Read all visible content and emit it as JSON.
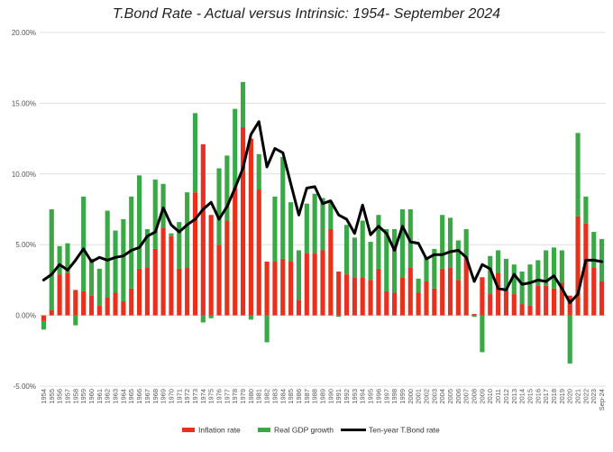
{
  "chart_data": {
    "type": "bar",
    "title": "T.Bond Rate - Actual versus Intrinsic: 1954- September 2024",
    "xlabel": "",
    "ylabel": "",
    "ylim": [
      -5,
      20
    ],
    "y_ticks": [
      "-5.00%",
      "0.00%",
      "5.00%",
      "10.00%",
      "15.00%",
      "20.00%"
    ],
    "y_tick_values": [
      -5,
      0,
      5,
      10,
      15,
      20
    ],
    "grid": true,
    "legend_position": "bottom",
    "stacked": true,
    "categories": [
      "1954",
      "1955",
      "1956",
      "1957",
      "1958",
      "1959",
      "1960",
      "1961",
      "1962",
      "1963",
      "1964",
      "1965",
      "1966",
      "1967",
      "1968",
      "1969",
      "1970",
      "1971",
      "1972",
      "1973",
      "1974",
      "1975",
      "1976",
      "1977",
      "1978",
      "1979",
      "1980",
      "1981",
      "1982",
      "1983",
      "1984",
      "1985",
      "1986",
      "1987",
      "1988",
      "1989",
      "1990",
      "1991",
      "1992",
      "1993",
      "1994",
      "1995",
      "1996",
      "1997",
      "1998",
      "1999",
      "2000",
      "2001",
      "2002",
      "2003",
      "2004",
      "2005",
      "2006",
      "2007",
      "2008",
      "2009",
      "2010",
      "2011",
      "2012",
      "2013",
      "2014",
      "2015",
      "2016",
      "2017",
      "2018",
      "2019",
      "2020",
      "2021",
      "2022",
      "2023",
      "Sep-24"
    ],
    "series": [
      {
        "name": "Inflation rate",
        "color": "#e8301c",
        "kind": "bar",
        "values": [
          -0.4,
          0.4,
          2.9,
          3.0,
          1.8,
          1.7,
          1.4,
          0.7,
          1.3,
          1.6,
          1.0,
          1.9,
          3.3,
          3.4,
          4.7,
          6.2,
          5.6,
          3.3,
          3.4,
          8.7,
          12.1,
          7.1,
          5.0,
          6.7,
          9.0,
          13.3,
          12.5,
          8.9,
          3.8,
          3.8,
          4.0,
          3.8,
          1.1,
          4.4,
          4.4,
          4.6,
          6.1,
          3.1,
          2.9,
          2.7,
          2.7,
          2.5,
          3.3,
          1.7,
          1.6,
          2.7,
          3.4,
          1.6,
          2.4,
          1.9,
          3.3,
          3.4,
          2.5,
          4.1,
          0.1,
          2.7,
          1.5,
          3.0,
          1.7,
          1.5,
          0.8,
          0.7,
          2.1,
          2.1,
          1.9,
          2.3,
          1.4,
          7.0,
          6.5,
          3.4,
          2.4
        ]
      },
      {
        "name": "Real GDP growth",
        "color": "#3aa845",
        "kind": "bar",
        "values": [
          -0.6,
          7.1,
          2.0,
          2.1,
          -0.7,
          6.7,
          2.6,
          2.6,
          6.1,
          4.4,
          5.8,
          6.5,
          6.6,
          2.7,
          4.9,
          3.1,
          0.2,
          3.3,
          5.3,
          5.6,
          -0.5,
          -0.2,
          5.4,
          4.6,
          5.6,
          3.2,
          -0.3,
          2.5,
          -1.9,
          4.6,
          7.2,
          4.2,
          3.5,
          3.5,
          4.2,
          3.7,
          1.9,
          -0.1,
          3.5,
          2.8,
          4.0,
          2.7,
          3.8,
          4.4,
          4.5,
          4.8,
          4.1,
          1.0,
          1.7,
          2.8,
          3.8,
          3.5,
          2.8,
          2.0,
          -0.1,
          -2.6,
          2.7,
          1.6,
          2.3,
          2.1,
          2.3,
          2.9,
          1.8,
          2.5,
          2.9,
          2.3,
          -3.4,
          5.9,
          1.9,
          2.5,
          3.0
        ]
      },
      {
        "name": "Ten-year T.Bond rate",
        "color": "#000000",
        "kind": "line",
        "values": [
          2.5,
          2.9,
          3.6,
          3.2,
          3.9,
          4.7,
          3.8,
          4.1,
          3.9,
          4.1,
          4.2,
          4.6,
          4.8,
          5.6,
          5.9,
          7.6,
          6.4,
          5.9,
          6.4,
          6.8,
          7.5,
          8.0,
          6.8,
          7.7,
          9.0,
          10.4,
          12.8,
          13.7,
          10.5,
          11.8,
          11.5,
          9.3,
          7.1,
          9.0,
          9.1,
          7.9,
          8.1,
          7.1,
          6.8,
          5.8,
          7.8,
          5.7,
          6.3,
          5.8,
          4.6,
          6.3,
          5.2,
          5.1,
          4.0,
          4.3,
          4.3,
          4.5,
          4.6,
          4.1,
          2.4,
          3.6,
          3.3,
          1.9,
          1.8,
          2.9,
          2.2,
          2.3,
          2.5,
          2.4,
          2.8,
          1.9,
          0.9,
          1.5,
          3.9,
          3.9,
          3.8
        ]
      }
    ]
  }
}
